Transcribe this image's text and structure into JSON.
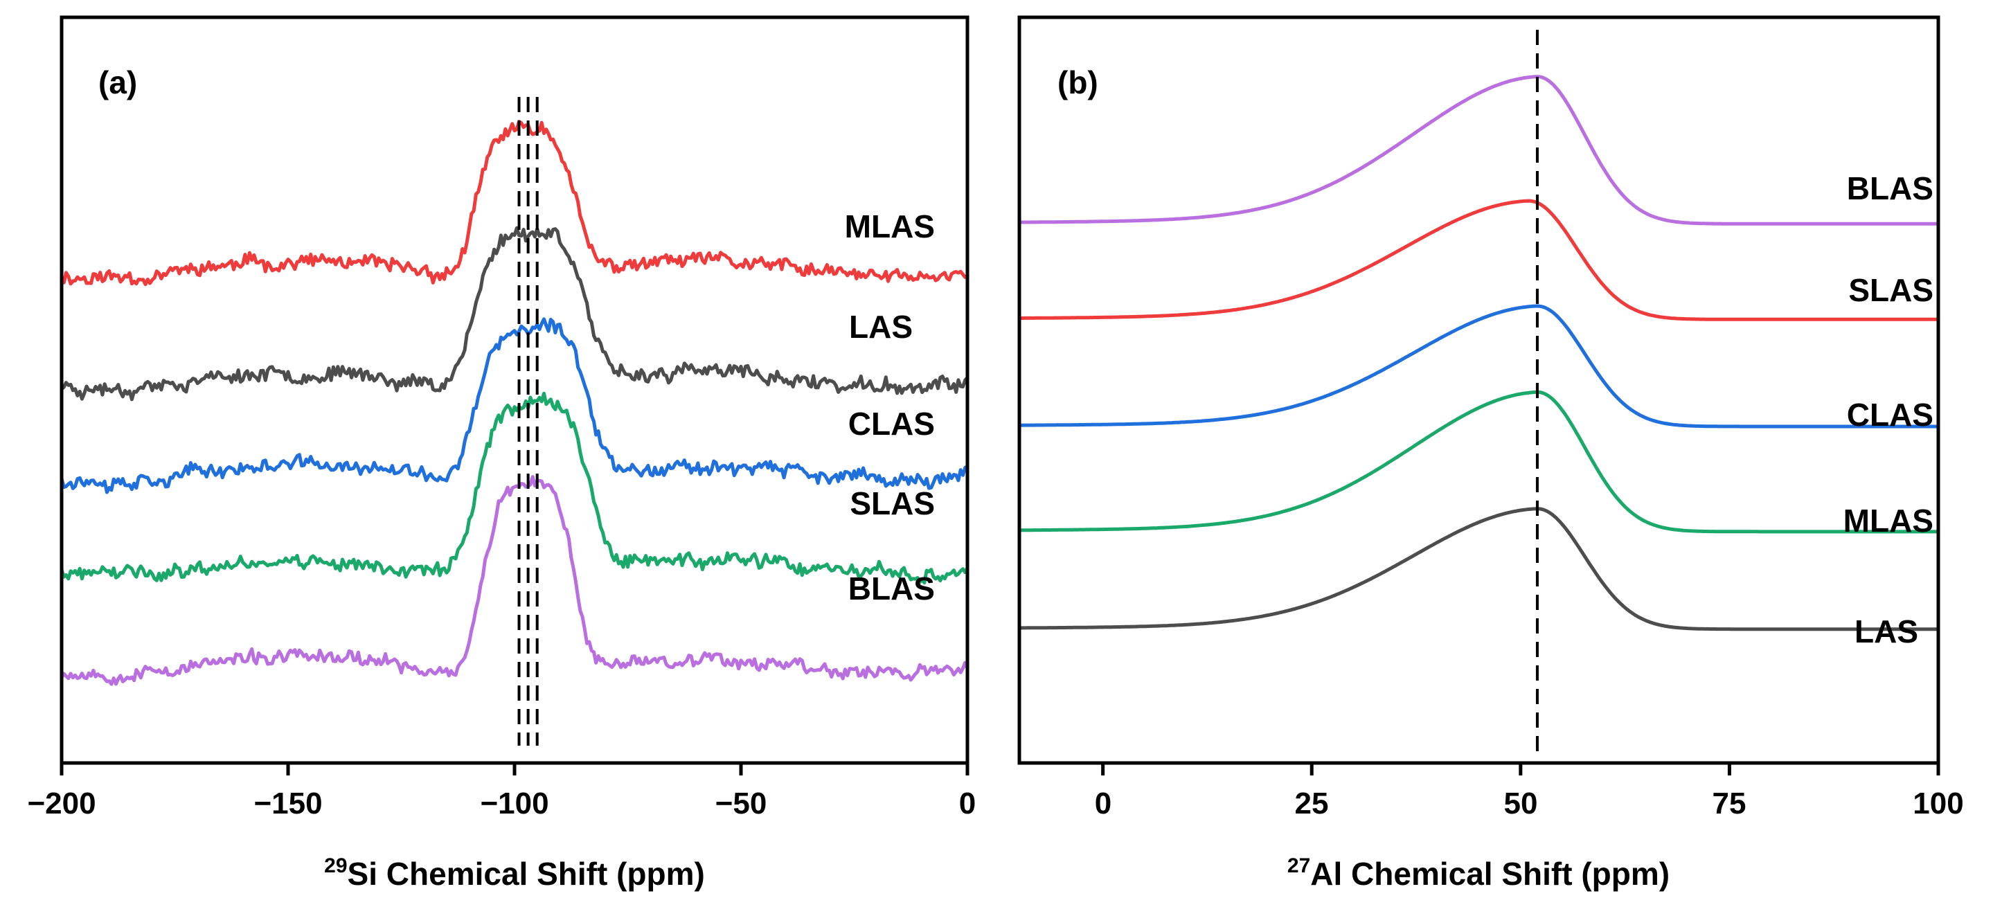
{
  "chart_data": [
    {
      "panel": "(a)",
      "type": "line",
      "xlabel_sup": "29",
      "xlabel": "Si Chemical Shift (ppm)",
      "ylabel": "",
      "xlim": [
        -200,
        0
      ],
      "xticks": [
        -200,
        -150,
        -100,
        -50,
        0
      ],
      "xtick_labels": [
        "−200",
        "−150",
        "−100",
        "−50",
        "0"
      ],
      "reference_lines_ppm": [
        -99,
        -97,
        -95
      ],
      "series": [
        {
          "name": "MLAS",
          "color": "#ef3b3b",
          "baseline": 1.62,
          "peak_center": -97.5,
          "peak_height": 0.57,
          "peak_width": 7.5,
          "noise": 0.022,
          "seed": 11
        },
        {
          "name": "LAS",
          "color": "#4d4d4d",
          "baseline": 1.19,
          "peak_center": -96.5,
          "peak_height": 0.6,
          "peak_width": 8.5,
          "noise": 0.022,
          "seed": 23
        },
        {
          "name": "CLAS",
          "color": "#1f6fdd",
          "baseline": 0.83,
          "peak_center": -96.0,
          "peak_height": 0.58,
          "peak_width": 8.5,
          "noise": 0.022,
          "seed": 37
        },
        {
          "name": "SLAS",
          "color": "#1aa96a",
          "baseline": 0.46,
          "peak_center": -96.0,
          "peak_height": 0.67,
          "peak_width": 8.5,
          "noise": 0.022,
          "seed": 41
        },
        {
          "name": "BLAS",
          "color": "#b96fe0",
          "baseline": 0.08,
          "peak_center": -97.0,
          "peak_height": 0.72,
          "peak_width": 7.0,
          "noise": 0.02,
          "seed": 53
        }
      ]
    },
    {
      "panel": "(b)",
      "type": "line",
      "xlabel_sup": "27",
      "xlabel": "Al Chemical Shift (ppm)",
      "ylabel": "",
      "xlim": [
        -10,
        100
      ],
      "xticks": [
        0,
        25,
        50,
        75,
        100
      ],
      "xtick_labels": [
        "0",
        "25",
        "50",
        "75",
        "100"
      ],
      "reference_lines_ppm": [
        52
      ],
      "series": [
        {
          "name": "BLAS",
          "color": "#b96fe0",
          "baseline": 2.82,
          "peak_center": 52,
          "peak_height": 0.77
        },
        {
          "name": "SLAS",
          "color": "#ef3b3b",
          "baseline": 2.32,
          "peak_center": 51,
          "peak_height": 0.62
        },
        {
          "name": "CLAS",
          "color": "#1f6fdd",
          "baseline": 1.76,
          "peak_center": 52,
          "peak_height": 0.63
        },
        {
          "name": "MLAS",
          "color": "#1aa96a",
          "baseline": 1.21,
          "peak_center": 52,
          "peak_height": 0.73
        },
        {
          "name": "LAS",
          "color": "#4d4d4d",
          "baseline": 0.7,
          "peak_center": 52,
          "peak_height": 0.63
        }
      ]
    }
  ]
}
